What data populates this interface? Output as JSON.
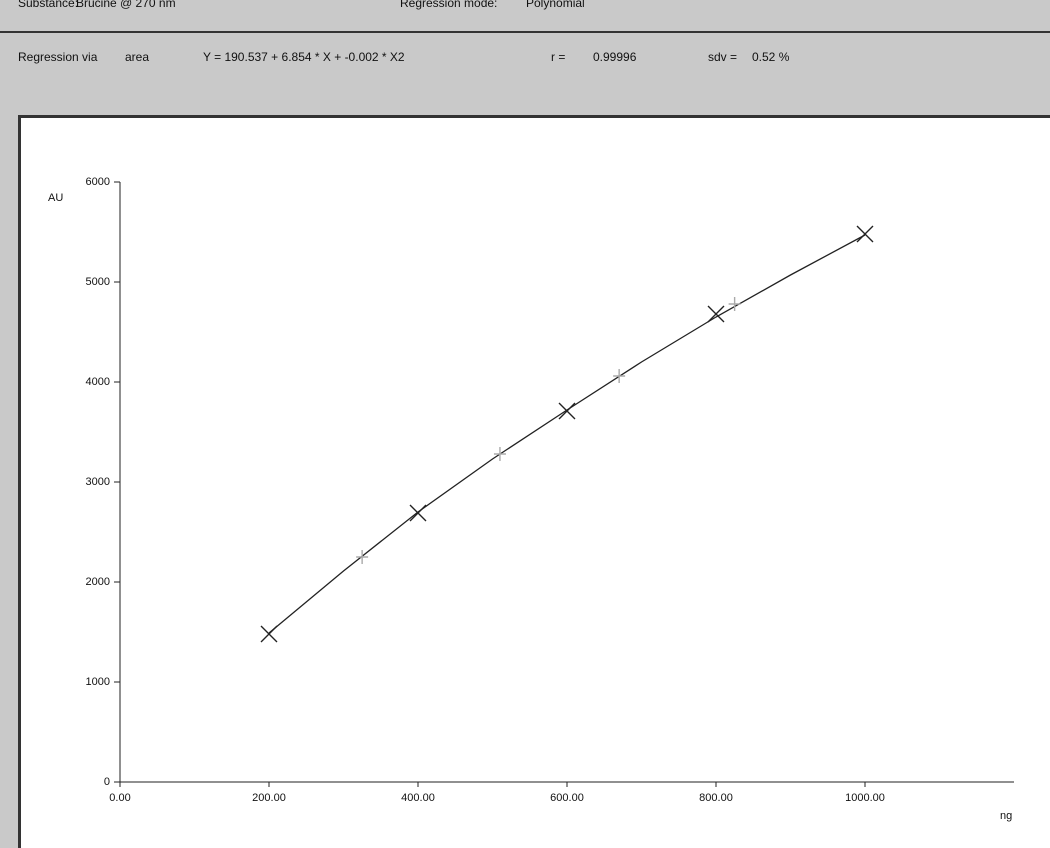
{
  "header": {
    "substance_label": "Substance:",
    "substance": "Brucine @ 270 nm",
    "mode_label": "Regression mode:",
    "mode": "Polynomial",
    "regression_label": "Regression via",
    "regression": "area",
    "equation": "Y = 190.537 + 6.854 * X + -0.002 * X2",
    "r_label": "r =",
    "r": "0.99996",
    "sdv_label": "sdv =",
    "sdv": "0.52 %"
  },
  "chart_data": {
    "type": "scatter",
    "y_label": "AU",
    "x_label": "ng",
    "xlim": [
      0,
      1200
    ],
    "ylim": [
      0,
      6000
    ],
    "xticks": [
      {
        "value": 0,
        "label": "0.00"
      },
      {
        "value": 200,
        "label": "200.00"
      },
      {
        "value": 400,
        "label": "400.00"
      },
      {
        "value": 600,
        "label": "600.00"
      },
      {
        "value": 800,
        "label": "800.00"
      },
      {
        "value": 1000,
        "label": "1000.00"
      }
    ],
    "yticks": [
      0,
      1000,
      2000,
      3000,
      4000,
      5000,
      6000
    ],
    "series": [
      {
        "type": "line",
        "color": "#222222",
        "x": [
          200,
          300,
          400,
          500,
          600,
          700,
          800,
          900,
          1000
        ],
        "values": [
          1490,
          2110,
          2700,
          3230,
          3720,
          4200,
          4650,
          5070,
          5470
        ]
      },
      {
        "type": "scatter",
        "marker": "x",
        "color": "#222222",
        "x": [
          200,
          400,
          600,
          800,
          1000
        ],
        "values": [
          1480,
          2690,
          3710,
          4680,
          5480
        ]
      },
      {
        "type": "scatter",
        "marker": "plus",
        "color": "#aaaaaa",
        "x": [
          325,
          510,
          670,
          825
        ],
        "values": [
          2250,
          3280,
          4060,
          4780
        ]
      }
    ]
  }
}
